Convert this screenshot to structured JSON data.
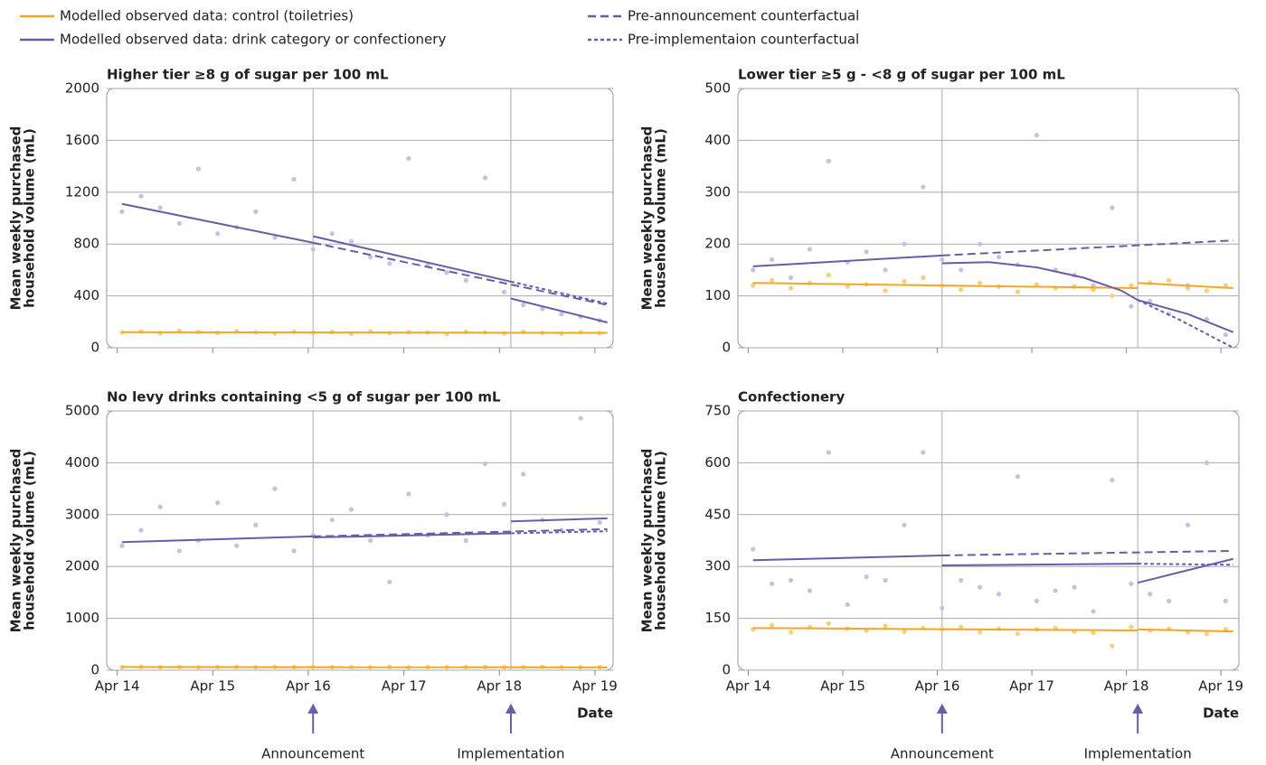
{
  "legend": [
    {
      "name": "Modelled observed data: control (toiletries)",
      "color": "#f5a623",
      "dash": "none"
    },
    {
      "name": "Modelled observed data: drink category or confectionery",
      "color": "#6b5ba8",
      "dash": "none"
    },
    {
      "name": "Pre-announcement counterfactual",
      "color": "#6b5ba8",
      "dash": "9 5"
    },
    {
      "name": "Pre-implementaion counterfactual",
      "color": "#6b5ba8",
      "dash": "4 3"
    }
  ],
  "chart_data": [
    {
      "type": "line",
      "title": "Higher tier ≥8 g of sugar per 100 mL",
      "ylabel": [
        "Mean weekly purchased",
        "household volume (mL)"
      ],
      "xlim": [
        2014.14,
        2019.44
      ],
      "xticks": [
        2014.25,
        2015.25,
        2016.25,
        2017.25,
        2018.25,
        2019.25
      ],
      "ylim": [
        0,
        2000
      ],
      "yticks": [
        0,
        400,
        800,
        1200,
        1600,
        2000
      ],
      "events": [
        2016.3,
        2018.37
      ],
      "grid": true,
      "x": [
        2014.3,
        2014.5,
        2014.7,
        2014.9,
        2015.1,
        2015.3,
        2015.5,
        2015.7,
        2015.9,
        2016.1,
        2016.3,
        2016.5,
        2016.7,
        2016.9,
        2017.1,
        2017.3,
        2017.5,
        2017.7,
        2017.9,
        2018.1,
        2018.3,
        2018.5,
        2018.7,
        2018.9,
        2019.1,
        2019.3
      ],
      "series": [
        {
          "color": "#f8cf7a",
          "values": [
            118,
            125,
            112,
            130,
            121,
            115,
            127,
            119,
            110,
            124,
            116,
            122,
            108,
            126,
            113,
            120,
            118,
            105,
            123,
            117,
            110,
            121,
            114,
            108,
            119,
            112
          ]
        },
        {
          "color": "#c7c0e4",
          "values": [
            1050,
            1170,
            1080,
            960,
            1380,
            880,
            930,
            1050,
            850,
            1300,
            760,
            880,
            820,
            700,
            650,
            1460,
            640,
            580,
            520,
            1310,
            430,
            330,
            300,
            260,
            240,
            210
          ]
        }
      ],
      "lines": [
        {
          "color": "#f5a623",
          "dash": "none",
          "x": [
            2014.3,
            2019.38
          ],
          "values": [
            120,
            115
          ]
        },
        {
          "color": "#6b5ba8",
          "dash": "none",
          "x": [
            2014.3,
            2016.3
          ],
          "values": [
            1110,
            810
          ]
        },
        {
          "color": "#6b5ba8",
          "dash": "none",
          "x": [
            2016.3,
            2018.37
          ],
          "values": [
            860,
            510
          ]
        },
        {
          "color": "#6b5ba8",
          "dash": "none",
          "x": [
            2018.37,
            2019.38
          ],
          "values": [
            380,
            195
          ]
        },
        {
          "color": "#6b5ba8",
          "dash": "9 5",
          "x": [
            2016.3,
            2019.38
          ],
          "values": [
            810,
            330
          ]
        },
        {
          "color": "#6b5ba8",
          "dash": "4 3",
          "x": [
            2018.37,
            2019.38
          ],
          "values": [
            510,
            340
          ]
        }
      ]
    },
    {
      "type": "line",
      "title": "Lower tier ≥5 g - <8 g of sugar per 100 mL",
      "ylabel": [
        "Mean weekly purchased",
        "household volume (mL)"
      ],
      "xlim": [
        2014.14,
        2019.44
      ],
      "xticks": [
        2014.25,
        2015.25,
        2016.25,
        2017.25,
        2018.25,
        2019.25
      ],
      "ylim": [
        0,
        500
      ],
      "yticks": [
        0,
        100,
        200,
        300,
        400,
        500
      ],
      "events": [
        2016.3,
        2018.37
      ],
      "grid": true,
      "x": [
        2014.3,
        2014.5,
        2014.7,
        2014.9,
        2015.1,
        2015.3,
        2015.5,
        2015.7,
        2015.9,
        2016.1,
        2016.3,
        2016.5,
        2016.7,
        2016.9,
        2017.1,
        2017.3,
        2017.5,
        2017.7,
        2017.9,
        2018.1,
        2018.3,
        2018.5,
        2018.7,
        2018.9,
        2019.1,
        2019.3
      ],
      "series": [
        {
          "color": "#f8cf7a",
          "values": [
            120,
            130,
            115,
            125,
            140,
            118,
            122,
            110,
            128,
            135,
            120,
            112,
            125,
            118,
            108,
            122,
            115,
            118,
            112,
            100,
            120,
            125,
            130,
            115,
            110,
            120
          ]
        },
        {
          "color": "#c7c0e4",
          "values": [
            150,
            170,
            135,
            190,
            360,
            165,
            185,
            150,
            200,
            310,
            170,
            150,
            200,
            175,
            160,
            410,
            150,
            140,
            120,
            270,
            80,
            90,
            65,
            120,
            55,
            25
          ]
        }
      ],
      "lines": [
        {
          "color": "#f5a623",
          "dash": "none",
          "x": [
            2014.3,
            2018.37
          ],
          "values": [
            125,
            115
          ]
        },
        {
          "color": "#f5a623",
          "dash": "none",
          "x": [
            2018.37,
            2019.38
          ],
          "values": [
            125,
            115
          ]
        },
        {
          "color": "#6b5ba8",
          "dash": "none",
          "x": [
            2014.3,
            2016.3
          ],
          "values": [
            157,
            178
          ]
        },
        {
          "color": "#6b5ba8",
          "dash": "none",
          "x": [
            2016.3,
            2016.8,
            2017.3,
            2017.8,
            2018.2,
            2018.37
          ],
          "values": [
            163,
            165,
            155,
            135,
            110,
            92
          ]
        },
        {
          "color": "#6b5ba8",
          "dash": "none",
          "x": [
            2018.37,
            2018.9,
            2019.38
          ],
          "values": [
            92,
            65,
            30
          ]
        },
        {
          "color": "#6b5ba8",
          "dash": "9 5",
          "x": [
            2016.3,
            2019.38
          ],
          "values": [
            178,
            207
          ]
        },
        {
          "color": "#6b5ba8",
          "dash": "4 3",
          "x": [
            2018.37,
            2018.8,
            2019.38
          ],
          "values": [
            92,
            55,
            0
          ]
        }
      ]
    },
    {
      "type": "line",
      "title": "No levy drinks containing <5 g of sugar per 100 mL",
      "ylabel": [
        "Mean weekly purchased",
        "household volume (mL)"
      ],
      "xlabel": "Date",
      "xlim": [
        2014.14,
        2019.44
      ],
      "xticks": [
        {
          "value": 2014.25,
          "label": "Apr 14"
        },
        {
          "value": 2015.25,
          "label": "Apr 15"
        },
        {
          "value": 2016.25,
          "label": "Apr 16"
        },
        {
          "value": 2017.25,
          "label": "Apr 17"
        },
        {
          "value": 2018.25,
          "label": "Apr 18"
        },
        {
          "value": 2019.25,
          "label": "Apr 19"
        }
      ],
      "ylim": [
        0,
        5000
      ],
      "yticks": [
        0,
        1000,
        2000,
        3000,
        4000,
        5000
      ],
      "events": [
        2016.3,
        2018.37
      ],
      "grid": true,
      "annotations": [
        "Announcement",
        "Implementation"
      ],
      "x": [
        2014.3,
        2014.5,
        2014.7,
        2014.9,
        2015.1,
        2015.3,
        2015.5,
        2015.7,
        2015.9,
        2016.1,
        2016.3,
        2016.5,
        2016.7,
        2016.9,
        2017.1,
        2017.3,
        2017.5,
        2017.7,
        2017.9,
        2018.1,
        2018.3,
        2018.5,
        2018.7,
        2018.9,
        2019.1,
        2019.3
      ],
      "series": [
        {
          "color": "#f8cf7a",
          "values": [
            60,
            65,
            55,
            62,
            58,
            60,
            64,
            57,
            61,
            59,
            63,
            56,
            60,
            58,
            62,
            55,
            60,
            57,
            61,
            59,
            56,
            60,
            62,
            58,
            57,
            60
          ]
        },
        {
          "color": "#c7c0e4",
          "values": [
            2400,
            2700,
            3150,
            2300,
            2500,
            3230,
            2400,
            2800,
            3500,
            2300,
            2600,
            2900,
            3100,
            2500,
            1700,
            3400,
            2600,
            3000,
            2500,
            3980,
            3200,
            3780,
            2900,
            2700,
            4860,
            2850
          ]
        }
      ],
      "lines": [
        {
          "color": "#f5a623",
          "dash": "none",
          "x": [
            2014.3,
            2019.38
          ],
          "values": [
            60,
            55
          ]
        },
        {
          "color": "#6b5ba8",
          "dash": "none",
          "x": [
            2014.3,
            2016.3
          ],
          "values": [
            2470,
            2580
          ]
        },
        {
          "color": "#6b5ba8",
          "dash": "none",
          "x": [
            2016.3,
            2018.37
          ],
          "values": [
            2560,
            2640
          ]
        },
        {
          "color": "#6b5ba8",
          "dash": "none",
          "x": [
            2018.37,
            2019.38
          ],
          "values": [
            2870,
            2930
          ]
        },
        {
          "color": "#6b5ba8",
          "dash": "9 5",
          "x": [
            2016.3,
            2019.38
          ],
          "values": [
            2580,
            2720
          ]
        },
        {
          "color": "#6b5ba8",
          "dash": "4 3",
          "x": [
            2018.37,
            2019.38
          ],
          "values": [
            2640,
            2680
          ]
        }
      ]
    },
    {
      "type": "line",
      "title": "Confectionery",
      "ylabel": [
        "Mean weekly purchased",
        "household volume (mL)"
      ],
      "xlabel": "Date",
      "xlim": [
        2014.14,
        2019.44
      ],
      "xticks": [
        {
          "value": 2014.25,
          "label": "Apr 14"
        },
        {
          "value": 2015.25,
          "label": "Apr 15"
        },
        {
          "value": 2016.25,
          "label": "Apr 16"
        },
        {
          "value": 2017.25,
          "label": "Apr 17"
        },
        {
          "value": 2018.25,
          "label": "Apr 18"
        },
        {
          "value": 2019.25,
          "label": "Apr 19"
        }
      ],
      "ylim": [
        0,
        750
      ],
      "yticks": [
        0,
        150,
        300,
        450,
        600,
        750
      ],
      "events": [
        2016.3,
        2018.37
      ],
      "grid": true,
      "annotations": [
        "Announcement",
        "Implementation"
      ],
      "x": [
        2014.3,
        2014.5,
        2014.7,
        2014.9,
        2015.1,
        2015.3,
        2015.5,
        2015.7,
        2015.9,
        2016.1,
        2016.3,
        2016.5,
        2016.7,
        2016.9,
        2017.1,
        2017.3,
        2017.5,
        2017.7,
        2017.9,
        2018.1,
        2018.3,
        2018.5,
        2018.7,
        2018.9,
        2019.1,
        2019.3
      ],
      "series": [
        {
          "color": "#f8cf7a",
          "values": [
            118,
            130,
            110,
            125,
            135,
            120,
            115,
            128,
            112,
            122,
            118,
            125,
            110,
            120,
            105,
            118,
            122,
            112,
            108,
            70,
            125,
            115,
            120,
            110,
            105,
            118
          ]
        },
        {
          "color": "#c7c0e4",
          "values": [
            350,
            250,
            260,
            230,
            630,
            190,
            270,
            260,
            420,
            630,
            180,
            260,
            240,
            220,
            560,
            200,
            230,
            240,
            170,
            550,
            250,
            220,
            200,
            420,
            600,
            200
          ]
        }
      ],
      "lines": [
        {
          "color": "#f5a623",
          "dash": "none",
          "x": [
            2014.3,
            2018.37
          ],
          "values": [
            122,
            115
          ]
        },
        {
          "color": "#f5a623",
          "dash": "none",
          "x": [
            2018.37,
            2019.38
          ],
          "values": [
            118,
            112
          ]
        },
        {
          "color": "#6b5ba8",
          "dash": "none",
          "x": [
            2014.3,
            2016.3
          ],
          "values": [
            318,
            332
          ]
        },
        {
          "color": "#6b5ba8",
          "dash": "none",
          "x": [
            2016.3,
            2018.37
          ],
          "values": [
            303,
            308
          ]
        },
        {
          "color": "#6b5ba8",
          "dash": "none",
          "x": [
            2018.37,
            2019.38
          ],
          "values": [
            253,
            322
          ]
        },
        {
          "color": "#6b5ba8",
          "dash": "9 5",
          "x": [
            2016.3,
            2019.38
          ],
          "values": [
            332,
            345
          ]
        },
        {
          "color": "#6b5ba8",
          "dash": "4 3",
          "x": [
            2018.37,
            2019.38
          ],
          "values": [
            308,
            305
          ]
        }
      ]
    }
  ]
}
